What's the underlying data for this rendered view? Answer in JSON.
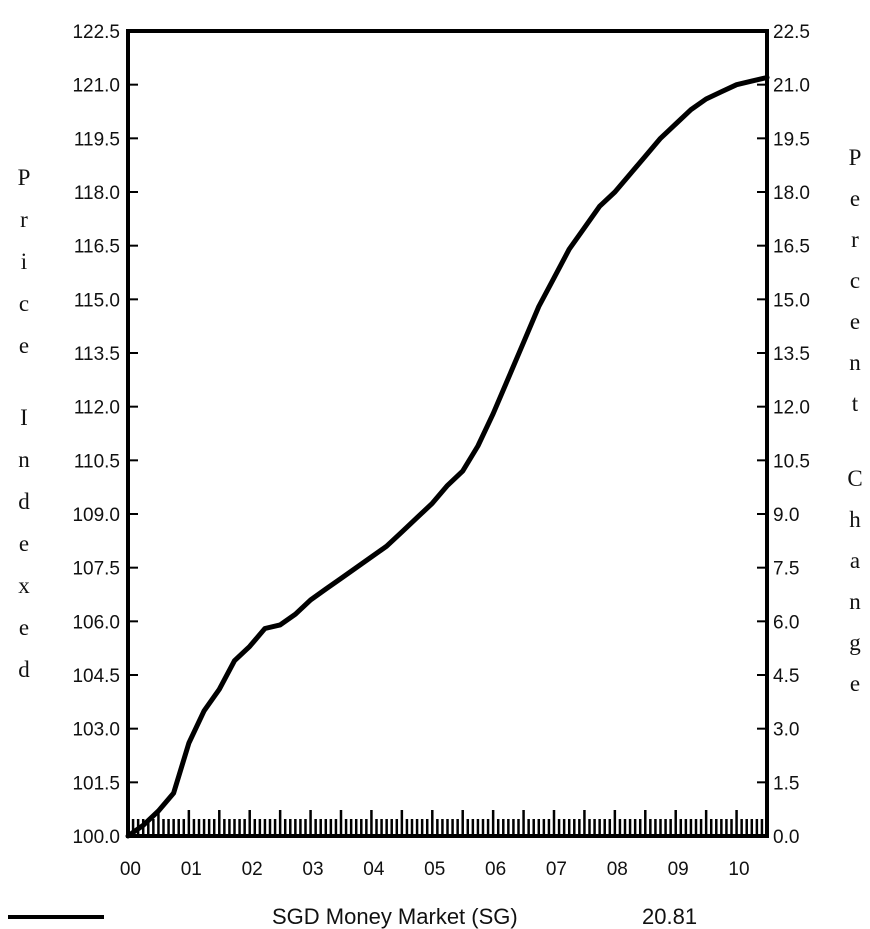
{
  "chart_data": {
    "type": "line",
    "ylabel_left": "Price Indexed",
    "ylabel_right": "Percent Change",
    "xlabel": "",
    "x_tick_labels": [
      "00",
      "01",
      "02",
      "03",
      "04",
      "05",
      "06",
      "07",
      "08",
      "09",
      "10"
    ],
    "x_range": [
      0,
      10.5
    ],
    "ylim_left": [
      100.0,
      122.5
    ],
    "ylim_right": [
      0.0,
      22.5
    ],
    "y_ticks_left": [
      "100.0",
      "101.5",
      "103.0",
      "104.5",
      "106.0",
      "107.5",
      "109.0",
      "110.5",
      "112.0",
      "113.5",
      "115.0",
      "116.5",
      "118.0",
      "119.5",
      "121.0",
      "122.5"
    ],
    "y_ticks_right": [
      "0.0",
      "1.5",
      "3.0",
      "4.5",
      "6.0",
      "7.5",
      "9.0",
      "10.5",
      "12.0",
      "13.5",
      "15.0",
      "16.5",
      "18.0",
      "19.5",
      "21.0",
      "22.5"
    ],
    "grid": false,
    "series": [
      {
        "name": "SGD Money Market (SG)",
        "final_value": "20.81",
        "color": "#000000",
        "x": [
          0,
          0.25,
          0.5,
          0.75,
          1.0,
          1.25,
          1.5,
          1.75,
          2.0,
          2.25,
          2.5,
          2.75,
          3.0,
          3.25,
          3.5,
          3.75,
          4.0,
          4.25,
          4.5,
          4.75,
          5.0,
          5.25,
          5.5,
          5.75,
          6.0,
          6.25,
          6.5,
          6.75,
          7.0,
          7.25,
          7.5,
          7.75,
          8.0,
          8.25,
          8.5,
          8.75,
          9.0,
          9.25,
          9.5,
          9.75,
          10.0,
          10.25,
          10.5
        ],
        "y": [
          100.0,
          100.3,
          100.7,
          101.2,
          102.6,
          103.5,
          104.1,
          104.9,
          105.3,
          105.8,
          105.9,
          106.2,
          106.6,
          106.9,
          107.2,
          107.5,
          107.8,
          108.1,
          108.5,
          108.9,
          109.3,
          109.8,
          110.2,
          110.9,
          111.8,
          112.8,
          113.8,
          114.8,
          115.6,
          116.4,
          117.0,
          117.6,
          118.0,
          118.5,
          119.0,
          119.5,
          119.9,
          120.3,
          120.6,
          120.8,
          121.0,
          121.1,
          121.2
        ]
      }
    ]
  }
}
